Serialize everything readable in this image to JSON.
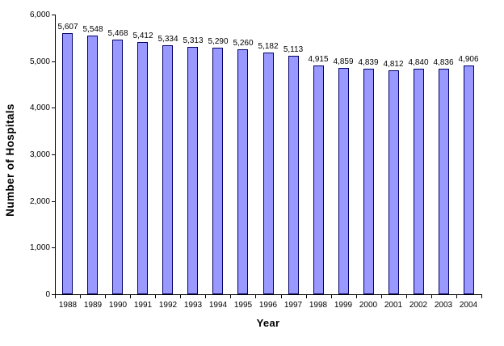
{
  "chart_data": {
    "type": "bar",
    "title": "",
    "xlabel": "Year",
    "ylabel": "Number of Hospitals",
    "categories": [
      "1988",
      "1989",
      "1990",
      "1991",
      "1992",
      "1993",
      "1994",
      "1995",
      "1996",
      "1997",
      "1998",
      "1999",
      "2000",
      "2001",
      "2002",
      "2003",
      "2004"
    ],
    "values": [
      5607,
      5548,
      5468,
      5412,
      5334,
      5313,
      5290,
      5260,
      5182,
      5113,
      4915,
      4859,
      4839,
      4812,
      4840,
      4836,
      4906
    ],
    "data_labels": [
      "5,607",
      "5,548",
      "5,468",
      "5,412",
      "5,334",
      "5,313",
      "5,290",
      "5,260",
      "5,182",
      "5,113",
      "4,915",
      "4,859",
      "4,839",
      "4,812",
      "4,840",
      "4,836",
      "4,906"
    ],
    "y_ticks": [
      0,
      1000,
      2000,
      3000,
      4000,
      5000,
      6000
    ],
    "y_tick_labels": [
      "0",
      "1,000",
      "2,000",
      "3,000",
      "4,000",
      "5,000",
      "6,000"
    ],
    "ylim": [
      0,
      6000
    ],
    "grid": false,
    "legend": "none",
    "bar_fill_color": "#9999FF",
    "bar_border_color": "#000066",
    "axis_color": "#000000",
    "background_color": "#FFFFFF"
  }
}
